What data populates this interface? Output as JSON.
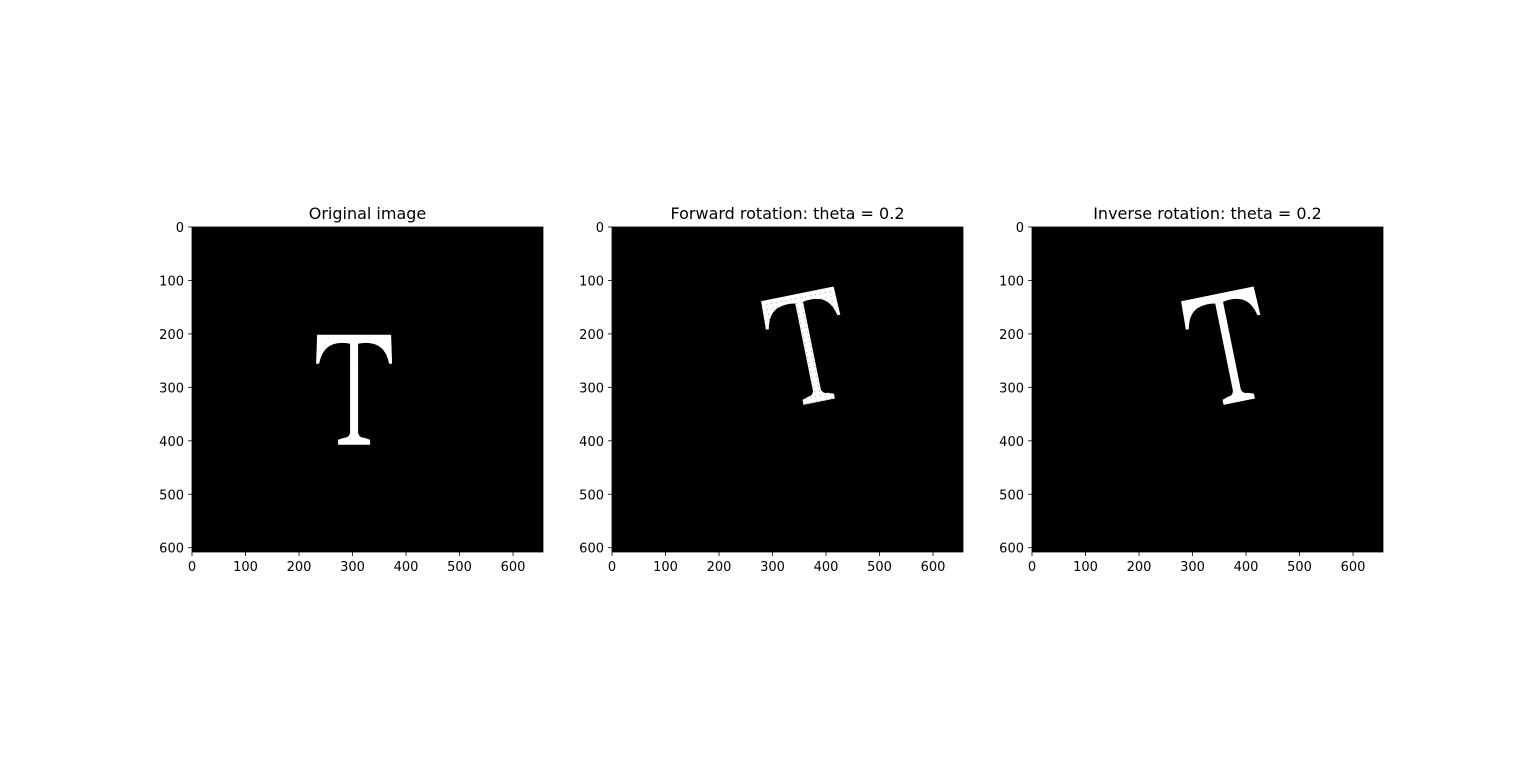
{
  "figure": {
    "background": "#ffffff",
    "image_background": "#000000",
    "glyph_color": "#ffffff"
  },
  "chart_data": [
    {
      "type": "image",
      "title": "Original image",
      "glyph": "T",
      "rotation_theta": 0,
      "dotted_texture": false,
      "x_ticks": [
        0,
        100,
        200,
        300,
        400,
        500,
        600
      ],
      "y_ticks": [
        0,
        100,
        200,
        300,
        400,
        500,
        600
      ],
      "xlim": [
        0,
        656
      ],
      "ylim": [
        608,
        0
      ],
      "glyph_center": [
        303,
        280
      ]
    },
    {
      "type": "image",
      "title": "Forward rotation: theta = 0.2",
      "glyph": "T",
      "rotation_theta": 0.2,
      "dotted_texture": true,
      "x_ticks": [
        0,
        100,
        200,
        300,
        400,
        500,
        600
      ],
      "y_ticks": [
        0,
        100,
        200,
        300,
        400,
        500,
        600
      ],
      "xlim": [
        0,
        656
      ],
      "ylim": [
        608,
        0
      ],
      "glyph_center": [
        362,
        202
      ]
    },
    {
      "type": "image",
      "title": "Inverse rotation: theta = 0.2",
      "glyph": "T",
      "rotation_theta": 0.2,
      "dotted_texture": false,
      "x_ticks": [
        0,
        100,
        200,
        300,
        400,
        500,
        600
      ],
      "y_ticks": [
        0,
        100,
        200,
        300,
        400,
        500,
        600
      ],
      "xlim": [
        0,
        656
      ],
      "ylim": [
        608,
        0
      ],
      "glyph_center": [
        362,
        202
      ]
    }
  ]
}
